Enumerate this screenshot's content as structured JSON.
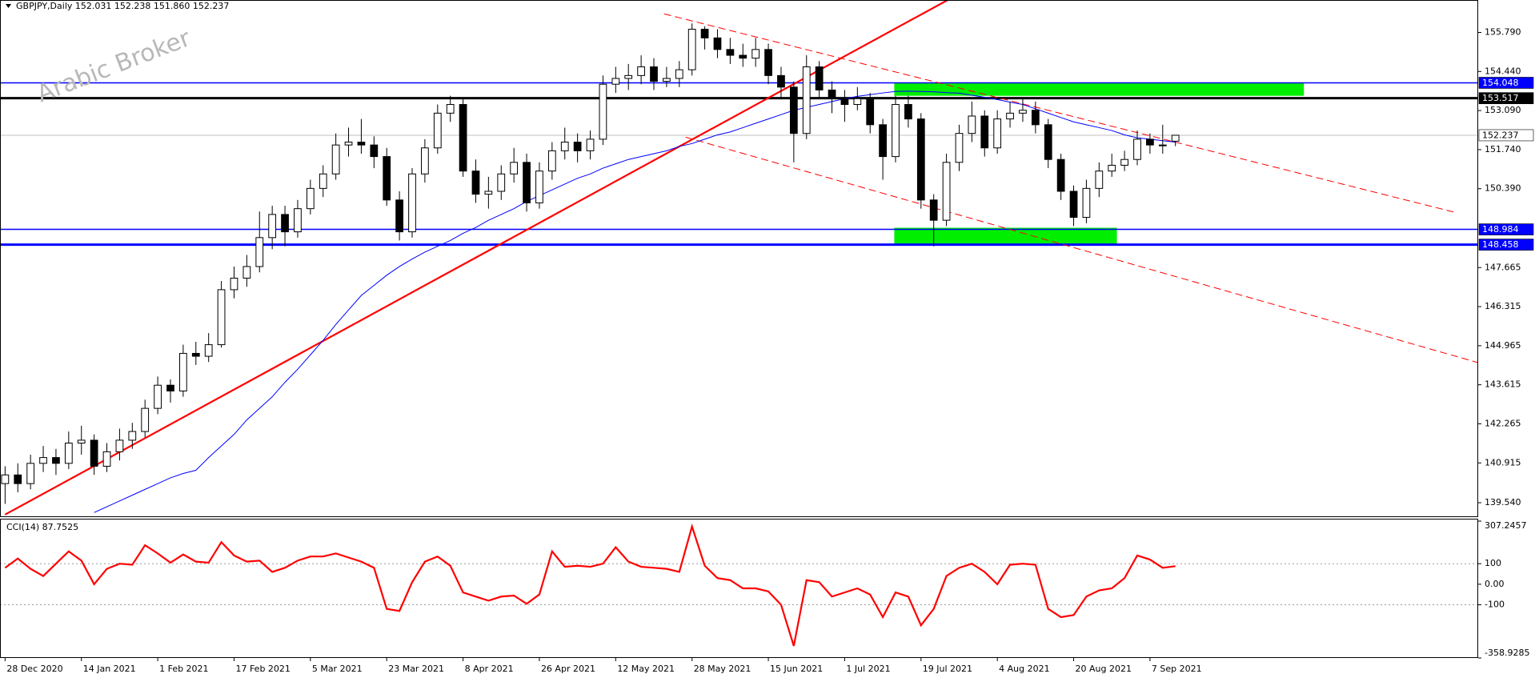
{
  "chart_data": {
    "type": "candlestick",
    "title": "GBPJPY,Daily  152.031 152.238 151.860 152.237",
    "watermark": "Arabic Broker",
    "xlim": [
      -0.4,
      115.8
    ],
    "ylim": [
      139.07,
      156.91
    ],
    "xticks": [
      {
        "value": 0,
        "label": "28 Dec 2020"
      },
      {
        "value": 6,
        "label": "14 Jan 2021"
      },
      {
        "value": 12,
        "label": "1 Feb 2021"
      },
      {
        "value": 18,
        "label": "17 Feb 2021"
      },
      {
        "value": 24,
        "label": "5 Mar 2021"
      },
      {
        "value": 30,
        "label": "23 Mar 2021"
      },
      {
        "value": 36,
        "label": "8 Apr 2021"
      },
      {
        "value": 42,
        "label": "26 Apr 2021"
      },
      {
        "value": 48,
        "label": "12 May 2021"
      },
      {
        "value": 54,
        "label": "28 May 2021"
      },
      {
        "value": 60,
        "label": "15 Jun 2021"
      },
      {
        "value": 66,
        "label": "1 Jul 2021"
      },
      {
        "value": 72,
        "label": "19 Jul 2021"
      },
      {
        "value": 78,
        "label": "4 Aug 2021"
      },
      {
        "value": 84,
        "label": "20 Aug 2021"
      },
      {
        "value": 90,
        "label": "7 Sep 2021"
      }
    ],
    "yticks": [
      {
        "value": 155.79,
        "label": "155.790"
      },
      {
        "value": 154.44,
        "label": "154.440"
      },
      {
        "value": 153.09,
        "label": "153.090"
      },
      {
        "value": 151.74,
        "label": "151.740"
      },
      {
        "value": 150.39,
        "label": "150.390"
      },
      {
        "value": 147.665,
        "label": "147.665"
      },
      {
        "value": 146.315,
        "label": "146.315"
      },
      {
        "value": 144.965,
        "label": "144.965"
      },
      {
        "value": 143.615,
        "label": "143.615"
      },
      {
        "value": 142.265,
        "label": "142.265"
      },
      {
        "value": 140.915,
        "label": "140.915"
      },
      {
        "value": 139.54,
        "label": "139.540"
      }
    ],
    "candle_colors": {
      "up": "#ffffff",
      "down": "#000000",
      "outline": "#000000"
    },
    "candles": [
      [
        140.2,
        140.8,
        139.5,
        140.5
      ],
      [
        140.5,
        140.9,
        139.9,
        140.2
      ],
      [
        140.2,
        141.2,
        140.0,
        140.9
      ],
      [
        140.9,
        141.5,
        140.6,
        141.1
      ],
      [
        141.1,
        141.4,
        140.5,
        140.9
      ],
      [
        140.9,
        142.0,
        140.7,
        141.6
      ],
      [
        141.6,
        142.2,
        141.2,
        141.7
      ],
      [
        141.7,
        141.9,
        140.5,
        140.8
      ],
      [
        140.8,
        141.6,
        140.6,
        141.3
      ],
      [
        141.3,
        142.1,
        141.0,
        141.7
      ],
      [
        141.7,
        142.3,
        141.4,
        142.0
      ],
      [
        142.0,
        143.1,
        141.8,
        142.8
      ],
      [
        142.8,
        143.9,
        142.6,
        143.6
      ],
      [
        143.6,
        143.8,
        143.0,
        143.4
      ],
      [
        143.4,
        145.0,
        143.2,
        144.7
      ],
      [
        144.7,
        145.1,
        144.3,
        144.6
      ],
      [
        144.6,
        145.4,
        144.4,
        145.0
      ],
      [
        145.0,
        147.2,
        144.9,
        146.9
      ],
      [
        146.9,
        147.7,
        146.6,
        147.3
      ],
      [
        147.3,
        148.1,
        147.0,
        147.7
      ],
      [
        147.7,
        149.6,
        147.5,
        148.7
      ],
      [
        148.7,
        149.8,
        148.3,
        149.5
      ],
      [
        149.5,
        149.8,
        148.4,
        148.9
      ],
      [
        148.9,
        150.0,
        148.7,
        149.7
      ],
      [
        149.7,
        150.7,
        149.5,
        150.4
      ],
      [
        150.4,
        151.2,
        150.1,
        150.9
      ],
      [
        150.9,
        152.3,
        150.7,
        151.9
      ],
      [
        151.9,
        152.5,
        151.5,
        152.0
      ],
      [
        152.0,
        152.8,
        151.6,
        151.9
      ],
      [
        151.9,
        152.2,
        151.1,
        151.5
      ],
      [
        151.5,
        151.8,
        149.8,
        150.0
      ],
      [
        150.0,
        150.3,
        148.6,
        148.9
      ],
      [
        148.9,
        151.1,
        148.7,
        150.9
      ],
      [
        150.9,
        152.1,
        150.6,
        151.8
      ],
      [
        151.8,
        153.3,
        151.6,
        153.0
      ],
      [
        153.0,
        153.6,
        152.7,
        153.3
      ],
      [
        153.3,
        153.5,
        150.8,
        151.0
      ],
      [
        151.0,
        151.4,
        149.9,
        150.2
      ],
      [
        150.2,
        150.8,
        149.7,
        150.3
      ],
      [
        150.3,
        151.2,
        150.0,
        150.9
      ],
      [
        150.9,
        151.8,
        150.6,
        151.3
      ],
      [
        151.3,
        151.6,
        149.6,
        149.9
      ],
      [
        149.9,
        151.3,
        149.7,
        151.0
      ],
      [
        151.0,
        152.0,
        150.7,
        151.7
      ],
      [
        151.7,
        152.5,
        151.4,
        152.0
      ],
      [
        152.0,
        152.3,
        151.3,
        151.7
      ],
      [
        151.7,
        152.4,
        151.4,
        152.1
      ],
      [
        152.1,
        154.3,
        151.9,
        154.0
      ],
      [
        154.0,
        154.6,
        153.7,
        154.2
      ],
      [
        154.2,
        154.7,
        153.8,
        154.3
      ],
      [
        154.3,
        155.0,
        154.0,
        154.6
      ],
      [
        154.6,
        154.9,
        153.8,
        154.1
      ],
      [
        154.1,
        154.6,
        153.9,
        154.2
      ],
      [
        154.2,
        154.8,
        153.9,
        154.5
      ],
      [
        154.5,
        156.1,
        154.3,
        155.9
      ],
      [
        155.9,
        156.0,
        155.2,
        155.6
      ],
      [
        155.6,
        155.9,
        154.9,
        155.2
      ],
      [
        155.2,
        155.6,
        154.7,
        155.0
      ],
      [
        155.0,
        155.4,
        154.6,
        154.9
      ],
      [
        154.9,
        155.6,
        154.6,
        155.2
      ],
      [
        155.2,
        155.4,
        154.0,
        154.3
      ],
      [
        154.3,
        154.6,
        153.5,
        153.9
      ],
      [
        153.9,
        154.1,
        151.3,
        152.3
      ],
      [
        152.3,
        155.0,
        152.1,
        154.6
      ],
      [
        154.6,
        154.8,
        153.5,
        153.8
      ],
      [
        153.8,
        154.1,
        153.0,
        153.5
      ],
      [
        153.5,
        153.8,
        152.7,
        153.3
      ],
      [
        153.3,
        153.9,
        153.1,
        153.5
      ],
      [
        153.5,
        153.7,
        152.3,
        152.6
      ],
      [
        152.6,
        152.8,
        150.7,
        151.5
      ],
      [
        151.5,
        153.6,
        151.3,
        153.3
      ],
      [
        153.3,
        153.6,
        152.5,
        152.8
      ],
      [
        152.8,
        153.0,
        149.7,
        150.0
      ],
      [
        150.0,
        150.2,
        148.4,
        149.3
      ],
      [
        149.3,
        151.6,
        149.1,
        151.3
      ],
      [
        151.3,
        152.6,
        151.0,
        152.3
      ],
      [
        152.3,
        153.4,
        152.0,
        152.9
      ],
      [
        152.9,
        153.1,
        151.5,
        151.8
      ],
      [
        151.8,
        153.1,
        151.6,
        152.8
      ],
      [
        152.8,
        153.4,
        152.5,
        153.0
      ],
      [
        153.0,
        153.5,
        152.7,
        153.1
      ],
      [
        153.1,
        153.4,
        152.3,
        152.6
      ],
      [
        152.6,
        152.8,
        151.1,
        151.4
      ],
      [
        151.4,
        151.6,
        150.0,
        150.3
      ],
      [
        150.3,
        150.5,
        149.1,
        149.4
      ],
      [
        149.4,
        150.7,
        149.2,
        150.4
      ],
      [
        150.4,
        151.3,
        150.1,
        151.0
      ],
      [
        151.0,
        151.6,
        150.8,
        151.2
      ],
      [
        151.2,
        151.7,
        151.0,
        151.4
      ],
      [
        151.4,
        152.4,
        151.2,
        152.1
      ],
      [
        152.1,
        152.3,
        151.6,
        151.9
      ],
      [
        151.9,
        152.6,
        151.6,
        151.9
      ],
      [
        152.031,
        152.238,
        151.86,
        152.237
      ]
    ],
    "ma": {
      "color": "#0000ff",
      "values": [
        null,
        null,
        null,
        null,
        null,
        null,
        null,
        139.2,
        139.4,
        139.6,
        139.8,
        140.0,
        140.2,
        140.4,
        140.55,
        140.66,
        141.1,
        141.5,
        141.9,
        142.4,
        142.8,
        143.2,
        143.7,
        144.15,
        144.65,
        145.15,
        145.7,
        146.2,
        146.7,
        147.05,
        147.4,
        147.7,
        147.96,
        148.2,
        148.4,
        148.6,
        148.85,
        149.05,
        149.3,
        149.5,
        149.7,
        149.95,
        150.15,
        150.35,
        150.55,
        150.75,
        150.9,
        151.1,
        151.25,
        151.4,
        151.5,
        151.6,
        151.7,
        151.85,
        151.95,
        152.1,
        152.25,
        152.35,
        152.5,
        152.65,
        152.8,
        152.95,
        153.1,
        153.2,
        153.3,
        153.4,
        153.5,
        153.58,
        153.64,
        153.7,
        153.75,
        153.76,
        153.75,
        153.74,
        153.71,
        153.69,
        153.62,
        153.55,
        153.47,
        153.38,
        153.3,
        153.15,
        153.0,
        152.85,
        152.7,
        152.6,
        152.5,
        152.4,
        152.25,
        152.15,
        152.1,
        152.05,
        152.0
      ]
    },
    "trendlines": [
      {
        "x": [
          0,
          74.1
        ],
        "y": [
          139.13,
          156.91
        ],
        "color": "#ff0000",
        "dashed": false
      },
      {
        "x": [
          51.8,
          114.1
        ],
        "y": [
          156.43,
          149.56
        ],
        "color": "#ff0000",
        "dashed": true
      },
      {
        "x": [
          53.5,
          115.8
        ],
        "y": [
          152.17,
          144.38
        ],
        "color": "#ff0000",
        "dashed": true
      }
    ],
    "zones": [
      {
        "x": [
          69.9,
          102.1
        ],
        "y": [
          153.6,
          154.048
        ],
        "color": "#00ee00"
      },
      {
        "x": [
          69.9,
          87.4
        ],
        "y": [
          148.42,
          149.04
        ],
        "color": "#00ee00"
      }
    ],
    "levels": [
      {
        "value": 154.048,
        "color": "#0000ff",
        "width": 1.5,
        "label_fill": "#0000ff",
        "label_text": "#ffffff"
      },
      {
        "value": 153.517,
        "color": "#000000",
        "width": 3,
        "label_fill": "#000000",
        "label_text": "#ffffff"
      },
      {
        "value": 152.237,
        "color": "#c0c0c0",
        "width": 1,
        "label_fill": "#ffffff",
        "label_text": "#000000"
      },
      {
        "value": 148.984,
        "color": "#0000ff",
        "width": 1.5,
        "label_fill": "#0000ff",
        "label_text": "#ffffff"
      },
      {
        "value": 148.458,
        "color": "#0000ff",
        "width": 3,
        "label_fill": "#0000ff",
        "label_text": "#ffffff"
      }
    ],
    "indicator": {
      "type": "line",
      "label": "CCI(14) 87.7525",
      "color": "#ff0000",
      "ylim": [
        -358.9285,
        307.2457
      ],
      "yticks": [
        307.2457,
        100,
        {
          "value": 0,
          "label": "0.00"
        },
        -100,
        -358.9285
      ],
      "levels": [
        100,
        -100
      ],
      "values": [
        80,
        125,
        75,
        40,
        100,
        160,
        115,
        0,
        75,
        100,
        95,
        190,
        150,
        105,
        145,
        110,
        105,
        205,
        140,
        110,
        115,
        60,
        80,
        115,
        135,
        135,
        150,
        130,
        110,
        80,
        -120,
        -130,
        10,
        110,
        135,
        90,
        -40,
        -60,
        -80,
        -60,
        -55,
        -95,
        -50,
        160,
        85,
        90,
        85,
        100,
        180,
        110,
        85,
        80,
        75,
        60,
        281,
        90,
        30,
        20,
        -20,
        -20,
        -35,
        -100,
        -300,
        20,
        10,
        -60,
        -40,
        -20,
        -50,
        -160,
        -40,
        -60,
        -200,
        -120,
        40,
        80,
        100,
        60,
        0,
        95,
        100,
        95,
        -120,
        -160,
        -150,
        -60,
        -30,
        -20,
        30,
        140,
        120,
        80,
        87.7525
      ]
    }
  }
}
